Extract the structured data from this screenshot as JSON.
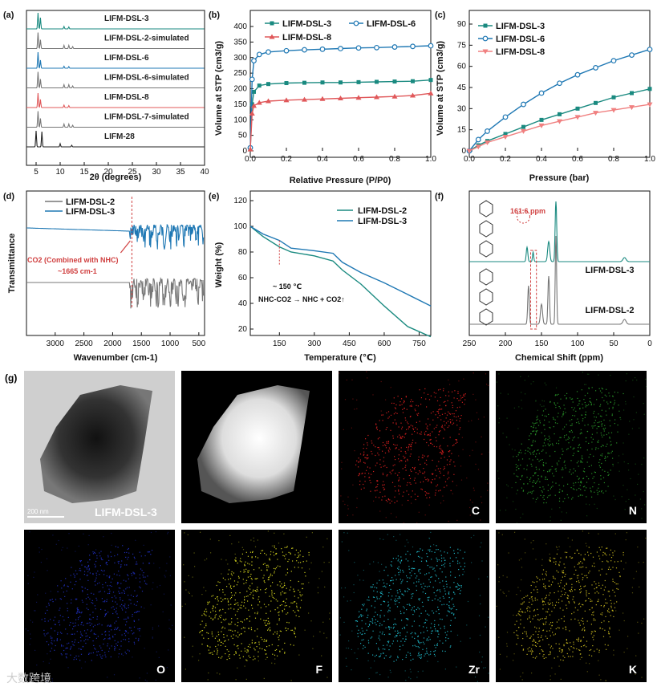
{
  "colors": {
    "teal": "#1a8a80",
    "blue": "#1f78b4",
    "red": "#e0585a",
    "pink": "#f08080",
    "gray": "#777777",
    "dark": "#222222"
  },
  "chart_data": [
    {
      "panel": "(a)",
      "type": "line",
      "title": "",
      "xlabel": "2θ (degrees)",
      "ylabel": "",
      "xlim": [
        3,
        40
      ],
      "xticks": [
        "5",
        "10",
        "15",
        "20",
        "25",
        "30",
        "35",
        "40"
      ],
      "series": [
        {
          "name": "LIFM-DSL-3",
          "color": "#1a8a80",
          "peaks": [
            [
              5.4,
              1.0
            ],
            [
              5.9,
              0.7
            ],
            [
              10.8,
              0.15
            ],
            [
              11.8,
              0.12
            ]
          ]
        },
        {
          "name": "LIFM-DSL-2-simulated",
          "color": "#777777",
          "peaks": [
            [
              5.4,
              1.0
            ],
            [
              5.9,
              0.55
            ],
            [
              10.8,
              0.2
            ],
            [
              11.8,
              0.2
            ],
            [
              12.6,
              0.12
            ]
          ]
        },
        {
          "name": "LIFM-DSL-6",
          "color": "#1f78b4",
          "peaks": [
            [
              5.4,
              1.0
            ],
            [
              5.9,
              0.5
            ],
            [
              10.8,
              0.12
            ],
            [
              11.8,
              0.1
            ]
          ]
        },
        {
          "name": "LIFM-DSL-6-simulated",
          "color": "#777777",
          "peaks": [
            [
              5.4,
              1.0
            ],
            [
              5.9,
              0.55
            ],
            [
              10.8,
              0.2
            ],
            [
              11.8,
              0.2
            ],
            [
              12.6,
              0.12
            ]
          ]
        },
        {
          "name": "LIFM-DSL-8",
          "color": "#e0585a",
          "peaks": [
            [
              5.4,
              0.9
            ],
            [
              5.9,
              0.5
            ],
            [
              10.8,
              0.15
            ],
            [
              11.8,
              0.12
            ]
          ]
        },
        {
          "name": "LIFM-DSL-7-simulated",
          "color": "#777777",
          "peaks": [
            [
              5.4,
              1.0
            ],
            [
              5.9,
              0.55
            ],
            [
              10.8,
              0.2
            ],
            [
              11.8,
              0.2
            ],
            [
              12.6,
              0.12
            ]
          ]
        },
        {
          "name": "LIFM-28",
          "color": "#222222",
          "peaks": [
            [
              5.0,
              1.0
            ],
            [
              6.2,
              0.95
            ],
            [
              10.0,
              0.2
            ],
            [
              12.4,
              0.1
            ]
          ]
        }
      ]
    },
    {
      "panel": "(b)",
      "type": "scatter",
      "title": "",
      "xlabel": "Relative Pressure (P/P0)",
      "ylabel": "Volume at STP (cm3/g)",
      "xlim": [
        0,
        1
      ],
      "ylim": [
        0,
        400
      ],
      "xticks": [
        "0.0",
        "0.2",
        "0.4",
        "0.6",
        "0.8",
        "1.0"
      ],
      "yticks": [
        "0",
        "50",
        "100",
        "150",
        "200",
        "250",
        "300",
        "350",
        "400"
      ],
      "series": [
        {
          "name": "LIFM-DSL-3",
          "color": "#1a8a80",
          "x": [
            0,
            0.01,
            0.02,
            0.05,
            0.1,
            0.2,
            0.3,
            0.4,
            0.5,
            0.6,
            0.7,
            0.8,
            0.9,
            1.0
          ],
          "y": [
            5,
            150,
            190,
            210,
            215,
            218,
            219,
            220,
            220,
            221,
            222,
            223,
            224,
            228
          ]
        },
        {
          "name": "LIFM-DSL-6",
          "color": "#1f78b4",
          "x": [
            0,
            0.01,
            0.02,
            0.05,
            0.1,
            0.2,
            0.3,
            0.4,
            0.5,
            0.6,
            0.7,
            0.8,
            0.9,
            1.0
          ],
          "y": [
            10,
            230,
            290,
            310,
            318,
            322,
            325,
            327,
            329,
            331,
            332,
            334,
            336,
            338
          ]
        },
        {
          "name": "LIFM-DSL-8",
          "color": "#e0585a",
          "x": [
            0,
            0.01,
            0.02,
            0.05,
            0.1,
            0.2,
            0.3,
            0.4,
            0.5,
            0.6,
            0.7,
            0.8,
            0.9,
            1.0
          ],
          "y": [
            5,
            120,
            145,
            155,
            160,
            163,
            165,
            167,
            169,
            171,
            173,
            175,
            178,
            185
          ]
        }
      ]
    },
    {
      "panel": "(c)",
      "type": "scatter",
      "title": "",
      "xlabel": "Pressure (bar)",
      "ylabel": "Volume at STP (cm3/g)",
      "xlim": [
        0,
        1
      ],
      "ylim": [
        0,
        90
      ],
      "xticks": [
        "0.0",
        "0.2",
        "0.4",
        "0.6",
        "0.8",
        "1.0"
      ],
      "yticks": [
        "0",
        "15",
        "30",
        "45",
        "60",
        "75",
        "90"
      ],
      "series": [
        {
          "name": "LIFM-DSL-3",
          "color": "#1a8a80",
          "x": [
            0,
            0.05,
            0.1,
            0.2,
            0.3,
            0.4,
            0.5,
            0.6,
            0.7,
            0.8,
            0.9,
            1.0
          ],
          "y": [
            0,
            4,
            7,
            12,
            17,
            22,
            26,
            30,
            34,
            38,
            41,
            44
          ]
        },
        {
          "name": "LIFM-DSL-6",
          "color": "#1f78b4",
          "x": [
            0,
            0.05,
            0.1,
            0.2,
            0.3,
            0.4,
            0.5,
            0.6,
            0.7,
            0.8,
            0.9,
            1.0
          ],
          "y": [
            0,
            8,
            14,
            24,
            33,
            41,
            48,
            54,
            59,
            64,
            68,
            72
          ]
        },
        {
          "name": "LIFM-DSL-8",
          "color": "#f08080",
          "x": [
            0,
            0.05,
            0.1,
            0.2,
            0.3,
            0.4,
            0.5,
            0.6,
            0.7,
            0.8,
            0.9,
            1.0
          ],
          "y": [
            0,
            3,
            6,
            10,
            14,
            18,
            21,
            24,
            27,
            29,
            31,
            33
          ]
        }
      ]
    },
    {
      "panel": "(d)",
      "type": "line",
      "title": "",
      "xlabel": "Wavenumber (cm-1)",
      "ylabel": "Transmittance",
      "xlim": [
        3500,
        400
      ],
      "xticks": [
        "3000",
        "2500",
        "2000",
        "1500",
        "1000",
        "500"
      ],
      "annotation": "CO2 (Combined with NHC)",
      "annotation2": "~1665 cm-1",
      "series": [
        {
          "name": "LIFM-DSL-2",
          "color": "#777777"
        },
        {
          "name": "LIFM-DSL-3",
          "color": "#1f78b4"
        }
      ]
    },
    {
      "panel": "(e)",
      "type": "line",
      "title": "",
      "xlabel": "Temperature (℃)",
      "ylabel": "Weight (%)",
      "xlim": [
        25,
        800
      ],
      "ylim": [
        15,
        120
      ],
      "xticks": [
        "150",
        "300",
        "450",
        "600",
        "750"
      ],
      "yticks": [
        "20",
        "40",
        "60",
        "80",
        "100",
        "120"
      ],
      "annotation": "~ 150 ℃",
      "annotation2": "NHC-CO2 → NHC + CO2↑",
      "series": [
        {
          "name": "LIFM-DSL-2",
          "color": "#1a8a80",
          "x": [
            25,
            80,
            150,
            200,
            300,
            380,
            420,
            500,
            600,
            700,
            800
          ],
          "y": [
            100,
            92,
            84,
            80,
            77,
            73,
            66,
            55,
            38,
            22,
            14
          ]
        },
        {
          "name": "LIFM-DSL-3",
          "color": "#1f78b4",
          "x": [
            25,
            80,
            150,
            200,
            300,
            380,
            420,
            500,
            600,
            700,
            800
          ],
          "y": [
            100,
            94,
            89,
            83,
            81,
            79,
            72,
            64,
            56,
            47,
            38
          ]
        }
      ]
    },
    {
      "panel": "(f)",
      "type": "line",
      "title": "",
      "xlabel": "Chemical Shift (ppm)",
      "ylabel": "",
      "xlim": [
        250,
        0
      ],
      "xticks": [
        "250",
        "200",
        "150",
        "100",
        "50",
        "0"
      ],
      "annotation": "161.6 ppm",
      "series": [
        {
          "name": "LIFM-DSL-3",
          "color": "#1a8a80"
        },
        {
          "name": "LIFM-DSL-2",
          "color": "#777777"
        }
      ]
    }
  ],
  "panel_g": {
    "label": "(g)",
    "scale_bar": "200 nm",
    "sample": "LIFM-DSL-3",
    "elements": [
      {
        "name": "C",
        "color": "#e02020"
      },
      {
        "name": "N",
        "color": "#2a9a2a"
      },
      {
        "name": "O",
        "color": "#2030c0"
      },
      {
        "name": "F",
        "color": "#e0e020"
      },
      {
        "name": "Zr",
        "color": "#20c0d0"
      },
      {
        "name": "K",
        "color": "#d0c020"
      }
    ]
  },
  "watermark": "大数跨境"
}
